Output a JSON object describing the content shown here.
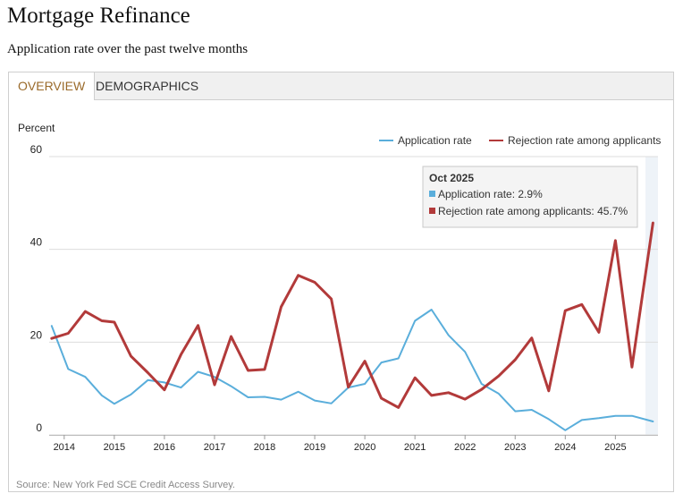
{
  "header": {
    "title": "Mortgage Refinance",
    "subtitle": "Application rate over the past twelve months"
  },
  "tabs": [
    {
      "label": "OVERVIEW",
      "active": true
    },
    {
      "label": "DEMOGRAPHICS",
      "active": false
    }
  ],
  "colors": {
    "application": "#5aaedb",
    "rejection": "#b23a3a",
    "grid": "#dddddd",
    "highlight": "#eef3f8",
    "active_tab": "#9a6a2a"
  },
  "tooltip": {
    "title": "Oct 2025",
    "line1": "Application rate: 2.9%",
    "line2": "Rejection rate among applicants: 45.7%"
  },
  "source": "Source: New York Fed SCE Credit Access Survey.",
  "chart_data": {
    "type": "line",
    "ylabel": "Percent",
    "ylim": [
      0,
      60
    ],
    "yticks": [
      0,
      20,
      40,
      60
    ],
    "xlim": [
      2013.7,
      2025.85
    ],
    "xticks": [
      2014,
      2015,
      2016,
      2017,
      2018,
      2019,
      2020,
      2021,
      2022,
      2023,
      2024,
      2025
    ],
    "grid": true,
    "legend_position": "top-right",
    "highlight_range": [
      2025.6,
      2025.85
    ],
    "series": [
      {
        "name": "Application rate",
        "x": [
          2013.75,
          2014.08,
          2014.42,
          2014.75,
          2015.0,
          2015.33,
          2015.67,
          2016.0,
          2016.33,
          2016.67,
          2017.0,
          2017.33,
          2017.67,
          2018.0,
          2018.33,
          2018.67,
          2019.0,
          2019.33,
          2019.67,
          2020.0,
          2020.33,
          2020.67,
          2021.0,
          2021.33,
          2021.67,
          2022.0,
          2022.33,
          2022.67,
          2023.0,
          2023.33,
          2023.67,
          2024.0,
          2024.33,
          2024.67,
          2025.0,
          2025.33,
          2025.75
        ],
        "values": [
          23.5,
          14.2,
          12.5,
          8.5,
          6.7,
          8.7,
          11.8,
          11.3,
          10.2,
          13.6,
          12.5,
          10.5,
          8.1,
          8.2,
          7.6,
          9.3,
          7.4,
          6.8,
          10.2,
          11.0,
          15.6,
          16.5,
          24.6,
          27.0,
          21.5,
          17.9,
          11.0,
          8.9,
          5.1,
          5.4,
          3.4,
          1.0,
          3.2,
          3.6,
          4.1,
          4.1,
          2.9
        ]
      },
      {
        "name": "Rejection rate among applicants",
        "x": [
          2013.75,
          2014.08,
          2014.42,
          2014.75,
          2015.0,
          2015.33,
          2015.67,
          2016.0,
          2016.33,
          2016.67,
          2017.0,
          2017.33,
          2017.67,
          2018.0,
          2018.33,
          2018.67,
          2019.0,
          2019.33,
          2019.67,
          2020.0,
          2020.33,
          2020.67,
          2021.0,
          2021.33,
          2021.67,
          2022.0,
          2022.33,
          2022.67,
          2023.0,
          2023.33,
          2023.67,
          2024.0,
          2024.33,
          2024.67,
          2025.0,
          2025.33,
          2025.75
        ],
        "values": [
          20.8,
          21.9,
          26.6,
          24.6,
          24.3,
          17.0,
          13.4,
          9.7,
          17.3,
          23.6,
          10.8,
          21.2,
          13.9,
          14.1,
          27.6,
          34.4,
          32.9,
          29.3,
          10.3,
          15.9,
          7.9,
          5.9,
          12.3,
          8.5,
          9.1,
          7.7,
          9.8,
          12.7,
          16.2,
          20.9,
          9.5,
          26.8,
          28.1,
          22.1,
          41.9,
          14.6,
          45.7
        ]
      }
    ]
  }
}
